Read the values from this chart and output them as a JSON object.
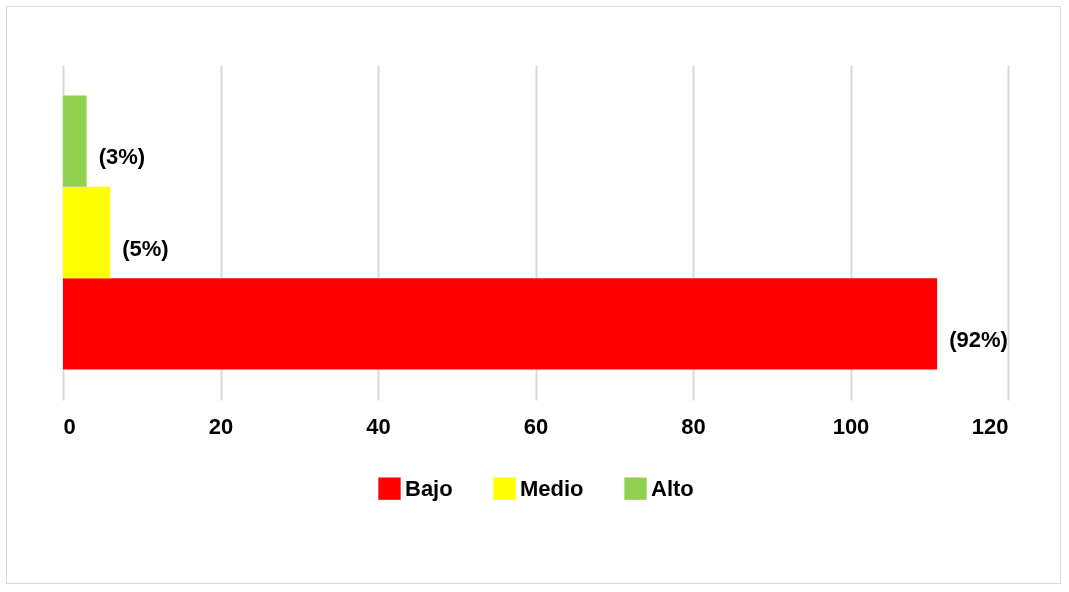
{
  "chart_data": {
    "type": "bar",
    "orientation": "horizontal",
    "categories": [
      null
    ],
    "series": [
      {
        "name": "Bajo",
        "color": "#ff0000",
        "values": [
          111
        ]
      },
      {
        "name": "Medio",
        "color": "#ffff00",
        "values": [
          6
        ]
      },
      {
        "name": "Alto",
        "color": "#92d050",
        "values": [
          3
        ]
      }
    ],
    "annotations": [
      {
        "text": "(92%)",
        "x": 111
      },
      {
        "text": "(5%)",
        "x": 6
      },
      {
        "text": "(3%)",
        "x": 3
      }
    ],
    "xlim": [
      0,
      120
    ],
    "xticks": [
      0,
      20,
      40,
      60,
      80,
      100,
      120
    ],
    "grid": "x",
    "legend": "bottom"
  }
}
